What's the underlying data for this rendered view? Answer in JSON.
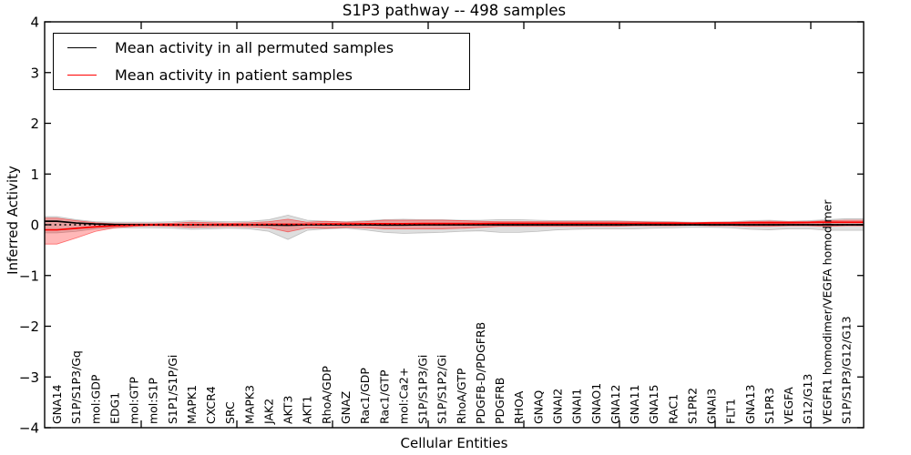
{
  "chart_data": {
    "type": "line",
    "title": "S1P3 pathway -- 498 samples",
    "xlabel": "Cellular Entities",
    "ylabel": "Inferred Activity",
    "ylim": [
      -4,
      4
    ],
    "ytick_labels": [
      "4",
      "3",
      "2",
      "1",
      "0",
      "−1",
      "−2",
      "−3",
      "−4"
    ],
    "grid": false,
    "legend": {
      "position": "upper-left",
      "items": [
        {
          "label": "Mean activity in all permuted samples",
          "color": "#000000"
        },
        {
          "label": "Mean activity in patient samples",
          "color": "#ff0000"
        }
      ]
    },
    "categories": [
      "GNA14",
      "S1P/S1P3/Gq",
      "mol:GDP",
      "EDG1",
      "mol:GTP",
      "mol:S1P",
      "S1P1/S1P/Gi",
      "MAPK1",
      "CXCR4",
      "SRC",
      "MAPK3",
      "JAK2",
      "AKT3",
      "AKT1",
      "RhoA/GDP",
      "GNAZ",
      "Rac1/GDP",
      "Rac1/GTP",
      "mol:Ca2+",
      "S1P/S1P3/Gi",
      "S1P/S1P2/Gi",
      "RhoA/GTP",
      "PDGFB-D/PDGFRB",
      "PDGFRB",
      "RHOA",
      "GNAQ",
      "GNAI2",
      "GNAI1",
      "GNAO1",
      "GNA12",
      "GNA11",
      "GNA15",
      "RAC1",
      "S1PR2",
      "GNAI3",
      "FLT1",
      "GNA13",
      "S1PR3",
      "VEGFA",
      "G12/G13",
      "VEGFR1 homodimer/VEGFA homodimer",
      "S1P/S1P3/G12/G13"
    ],
    "series": [
      {
        "name": "Mean activity in all permuted samples",
        "color": "#000000",
        "style": "solid",
        "values": [
          0.07,
          0.035,
          0.015,
          0.005,
          0,
          0,
          0,
          0,
          0,
          0,
          0,
          -0.005,
          -0.01,
          0,
          0,
          0,
          0,
          -0.005,
          -0.005,
          0,
          0,
          0,
          0,
          0,
          0,
          0,
          0,
          0,
          0,
          0,
          0,
          0,
          0,
          0,
          0,
          0,
          0,
          0,
          0,
          0,
          0,
          0
        ]
      },
      {
        "name": "Mean activity in patient samples",
        "color": "#ff0000",
        "style": "solid",
        "values": [
          -0.1,
          -0.07,
          -0.04,
          -0.02,
          -0.01,
          0,
          0,
          0.005,
          0.005,
          0.005,
          0.005,
          0.01,
          0.01,
          0.01,
          0.015,
          0.015,
          0.02,
          0.02,
          0.02,
          0.025,
          0.025,
          0.025,
          0.025,
          0.03,
          0.03,
          0.03,
          0.03,
          0.03,
          0.03,
          0.03,
          0.03,
          0.03,
          0.03,
          0.03,
          0.035,
          0.035,
          0.04,
          0.04,
          0.04,
          0.045,
          0.05,
          0.05
        ]
      }
    ],
    "zero_line": {
      "value": 0,
      "color": "#000000",
      "style": "dotted"
    },
    "bands": [
      {
        "name": "permuted-spread",
        "fill": "rgba(105,105,105,0.22)",
        "stroke": "rgba(105,105,105,0.35)",
        "upper": [
          0.16,
          0.1,
          0.06,
          0.05,
          0.05,
          0.05,
          0.06,
          0.08,
          0.07,
          0.06,
          0.07,
          0.1,
          0.19,
          0.09,
          0.07,
          0.06,
          0.08,
          0.1,
          0.11,
          0.1,
          0.1,
          0.09,
          0.09,
          0.1,
          0.1,
          0.09,
          0.08,
          0.08,
          0.08,
          0.08,
          0.07,
          0.07,
          0.06,
          0.05,
          0.05,
          0.06,
          0.08,
          0.09,
          0.07,
          0.08,
          0.1,
          0.12
        ],
        "lower": [
          -0.16,
          -0.13,
          -0.08,
          -0.06,
          -0.06,
          -0.06,
          -0.07,
          -0.09,
          -0.08,
          -0.07,
          -0.08,
          -0.13,
          -0.29,
          -0.11,
          -0.08,
          -0.07,
          -0.1,
          -0.15,
          -0.17,
          -0.16,
          -0.15,
          -0.13,
          -0.12,
          -0.15,
          -0.15,
          -0.13,
          -0.1,
          -0.09,
          -0.08,
          -0.08,
          -0.08,
          -0.07,
          -0.06,
          -0.05,
          -0.05,
          -0.06,
          -0.09,
          -0.1,
          -0.08,
          -0.08,
          -0.11,
          -0.11
        ]
      },
      {
        "name": "patient-spread",
        "fill": "rgba(255,0,0,0.28)",
        "stroke": "rgba(255,0,0,0.5)",
        "upper": [
          0.13,
          0.08,
          0.04,
          0.02,
          0.02,
          0.02,
          0.03,
          0.05,
          0.04,
          0.03,
          0.04,
          0.06,
          0.11,
          0.05,
          0.07,
          0.05,
          0.06,
          0.09,
          0.09,
          0.09,
          0.09,
          0.08,
          0.07,
          0.06,
          0.06,
          0.06,
          0.06,
          0.06,
          0.06,
          0.06,
          0.06,
          0.05,
          0.05,
          0.04,
          0.05,
          0.05,
          0.06,
          0.07,
          0.06,
          0.06,
          0.08,
          0.09
        ],
        "lower": [
          -0.38,
          -0.26,
          -0.13,
          -0.06,
          -0.03,
          -0.02,
          -0.03,
          -0.05,
          -0.04,
          -0.03,
          -0.04,
          -0.06,
          -0.14,
          -0.06,
          -0.07,
          -0.05,
          -0.06,
          -0.08,
          -0.08,
          -0.08,
          -0.08,
          -0.07,
          -0.05,
          -0.03,
          -0.03,
          -0.03,
          -0.03,
          -0.03,
          -0.03,
          -0.03,
          -0.02,
          -0.02,
          -0.02,
          -0.01,
          -0.02,
          -0.02,
          -0.03,
          -0.03,
          -0.02,
          -0.02,
          -0.03,
          -0.02
        ]
      }
    ]
  }
}
